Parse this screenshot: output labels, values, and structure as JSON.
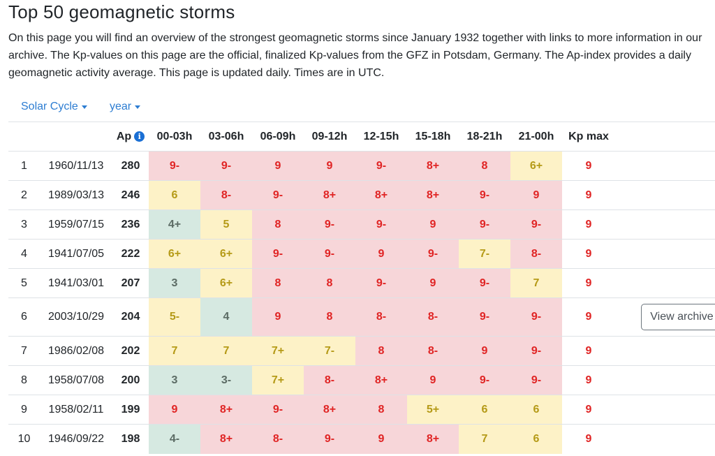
{
  "page": {
    "title": "Top 50 geomagnetic storms",
    "intro": "On this page you will find an overview of the strongest geomagnetic storms since January 1932 together with links to more information in our archive. The Kp-values on this page are the official, finalized Kp-values from the GFZ in Potsdam, Germany. The Ap-index provides a daily geomagnetic activity average. This page is updated daily. Times are in UTC."
  },
  "filters": {
    "solar_cycle": "Solar Cycle",
    "year": "year"
  },
  "table": {
    "headers": {
      "ap": "Ap",
      "ap_info_icon": "info-icon",
      "intervals": [
        "00-03h",
        "03-06h",
        "06-09h",
        "09-12h",
        "12-15h",
        "15-18h",
        "18-21h",
        "21-00h"
      ],
      "kp_max": "Kp max"
    },
    "level_colors": {
      "r": "#f7d6d9",
      "y": "#fdf2c7",
      "g": "#d6e9e1"
    },
    "rows": [
      {
        "rank": "1",
        "date": "1960/11/13",
        "ap": "280",
        "kp": [
          [
            "9-",
            "r"
          ],
          [
            "9-",
            "r"
          ],
          [
            "9",
            "r"
          ],
          [
            "9",
            "r"
          ],
          [
            "9-",
            "r"
          ],
          [
            "8+",
            "r"
          ],
          [
            "8",
            "r"
          ],
          [
            "6+",
            "y"
          ]
        ],
        "kp_max": "9"
      },
      {
        "rank": "2",
        "date": "1989/03/13",
        "ap": "246",
        "kp": [
          [
            "6",
            "y"
          ],
          [
            "8-",
            "r"
          ],
          [
            "9-",
            "r"
          ],
          [
            "8+",
            "r"
          ],
          [
            "8+",
            "r"
          ],
          [
            "8+",
            "r"
          ],
          [
            "9-",
            "r"
          ],
          [
            "9",
            "r"
          ]
        ],
        "kp_max": "9"
      },
      {
        "rank": "3",
        "date": "1959/07/15",
        "ap": "236",
        "kp": [
          [
            "4+",
            "g"
          ],
          [
            "5",
            "y"
          ],
          [
            "8",
            "r"
          ],
          [
            "9-",
            "r"
          ],
          [
            "9-",
            "r"
          ],
          [
            "9",
            "r"
          ],
          [
            "9-",
            "r"
          ],
          [
            "9-",
            "r"
          ]
        ],
        "kp_max": "9"
      },
      {
        "rank": "4",
        "date": "1941/07/05",
        "ap": "222",
        "kp": [
          [
            "6+",
            "y"
          ],
          [
            "6+",
            "y"
          ],
          [
            "9-",
            "r"
          ],
          [
            "9-",
            "r"
          ],
          [
            "9",
            "r"
          ],
          [
            "9-",
            "r"
          ],
          [
            "7-",
            "y"
          ],
          [
            "8-",
            "r"
          ]
        ],
        "kp_max": "9"
      },
      {
        "rank": "5",
        "date": "1941/03/01",
        "ap": "207",
        "kp": [
          [
            "3",
            "g"
          ],
          [
            "6+",
            "y"
          ],
          [
            "8",
            "r"
          ],
          [
            "8",
            "r"
          ],
          [
            "9-",
            "r"
          ],
          [
            "9",
            "r"
          ],
          [
            "9-",
            "r"
          ],
          [
            "7",
            "y"
          ]
        ],
        "kp_max": "9"
      },
      {
        "rank": "6",
        "date": "2003/10/29",
        "ap": "204",
        "kp": [
          [
            "5-",
            "y"
          ],
          [
            "4",
            "g"
          ],
          [
            "9",
            "r"
          ],
          [
            "8",
            "r"
          ],
          [
            "8-",
            "r"
          ],
          [
            "8-",
            "r"
          ],
          [
            "9-",
            "r"
          ],
          [
            "9-",
            "r"
          ]
        ],
        "kp_max": "9",
        "action": "View archive"
      },
      {
        "rank": "7",
        "date": "1986/02/08",
        "ap": "202",
        "kp": [
          [
            "7",
            "y"
          ],
          [
            "7",
            "y"
          ],
          [
            "7+",
            "y"
          ],
          [
            "7-",
            "y"
          ],
          [
            "8",
            "r"
          ],
          [
            "8-",
            "r"
          ],
          [
            "9",
            "r"
          ],
          [
            "9-",
            "r"
          ]
        ],
        "kp_max": "9"
      },
      {
        "rank": "8",
        "date": "1958/07/08",
        "ap": "200",
        "kp": [
          [
            "3",
            "g"
          ],
          [
            "3-",
            "g"
          ],
          [
            "7+",
            "y"
          ],
          [
            "8-",
            "r"
          ],
          [
            "8+",
            "r"
          ],
          [
            "9",
            "r"
          ],
          [
            "9-",
            "r"
          ],
          [
            "9-",
            "r"
          ]
        ],
        "kp_max": "9"
      },
      {
        "rank": "9",
        "date": "1958/02/11",
        "ap": "199",
        "kp": [
          [
            "9",
            "r"
          ],
          [
            "8+",
            "r"
          ],
          [
            "9-",
            "r"
          ],
          [
            "8+",
            "r"
          ],
          [
            "8",
            "r"
          ],
          [
            "5+",
            "y"
          ],
          [
            "6",
            "y"
          ],
          [
            "6",
            "y"
          ]
        ],
        "kp_max": "9"
      },
      {
        "rank": "10",
        "date": "1946/09/22",
        "ap": "198",
        "kp": [
          [
            "4-",
            "g"
          ],
          [
            "8+",
            "r"
          ],
          [
            "8-",
            "r"
          ],
          [
            "9-",
            "r"
          ],
          [
            "9",
            "r"
          ],
          [
            "8+",
            "r"
          ],
          [
            "7",
            "y"
          ],
          [
            "6",
            "y"
          ]
        ],
        "kp_max": "9"
      }
    ]
  }
}
